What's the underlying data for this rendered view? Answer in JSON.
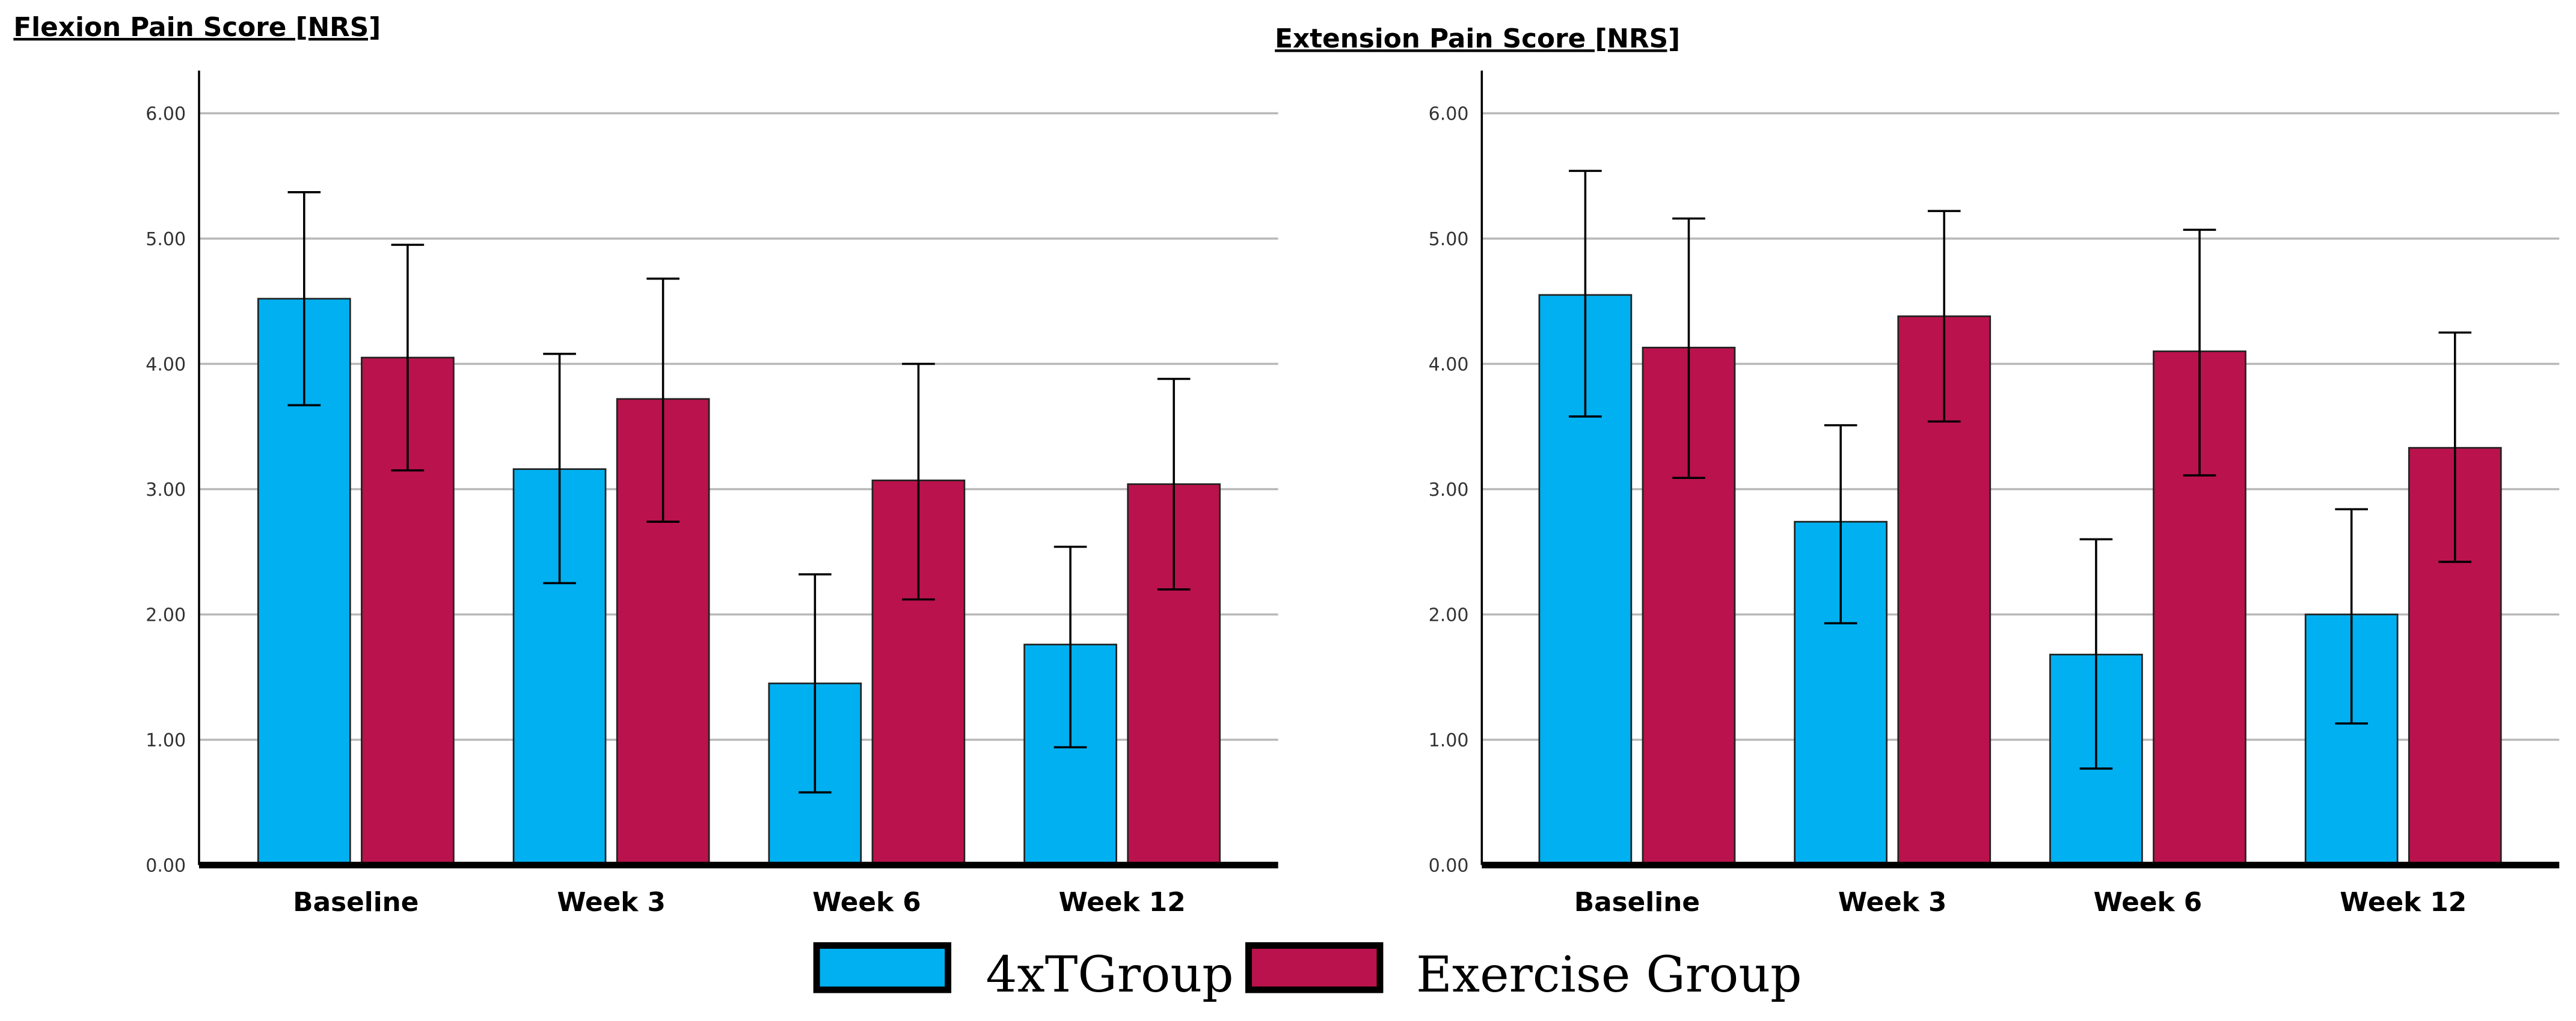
{
  "chart_data": [
    {
      "type": "bar",
      "title": "Flexion Pain Score [NRS]",
      "xlabel": "",
      "ylabel": "",
      "ylim": [
        0,
        6
      ],
      "yticks": [
        "0.00",
        "1.00",
        "2.00",
        "3.00",
        "4.00",
        "5.00",
        "6.00"
      ],
      "categories": [
        "Baseline",
        "Week 3",
        "Week 6",
        "Week 12"
      ],
      "series": [
        {
          "name": "4xTGroup",
          "color": "#00B0F0",
          "values": [
            4.52,
            3.16,
            1.45,
            1.76
          ],
          "err_low": [
            3.67,
            2.25,
            0.58,
            0.94
          ],
          "err_high": [
            5.37,
            4.08,
            2.32,
            2.54
          ]
        },
        {
          "name": "Exercise Group",
          "color": "#BA124C",
          "values": [
            4.05,
            3.72,
            3.07,
            3.04
          ],
          "err_low": [
            3.15,
            2.74,
            2.12,
            2.2
          ],
          "err_high": [
            4.95,
            4.68,
            4.0,
            3.88
          ]
        }
      ],
      "grid": true
    },
    {
      "type": "bar",
      "title": "Extension Pain Score [NRS]",
      "xlabel": "",
      "ylabel": "",
      "ylim": [
        0,
        6
      ],
      "yticks": [
        "0.00",
        "1.00",
        "2.00",
        "3.00",
        "4.00",
        "5.00",
        "6.00"
      ],
      "categories": [
        "Baseline",
        "Week 3",
        "Week 6",
        "Week 12"
      ],
      "series": [
        {
          "name": "4xTGroup",
          "color": "#00B0F0",
          "values": [
            4.55,
            2.74,
            1.68,
            2.0
          ],
          "err_low": [
            3.58,
            1.93,
            0.77,
            1.13
          ],
          "err_high": [
            5.54,
            3.51,
            2.6,
            2.84
          ]
        },
        {
          "name": "Exercise Group",
          "color": "#BA124C",
          "values": [
            4.13,
            4.38,
            4.1,
            3.33
          ],
          "err_low": [
            3.09,
            3.54,
            3.11,
            2.42
          ],
          "err_high": [
            5.16,
            5.22,
            5.07,
            4.25
          ]
        }
      ],
      "grid": true
    }
  ],
  "legend": {
    "placement": "bottom-center",
    "items": [
      {
        "label": "4xTGroup",
        "color": "#00B0F0"
      },
      {
        "label": "Exercise Group",
        "color": "#BA124C"
      }
    ]
  }
}
